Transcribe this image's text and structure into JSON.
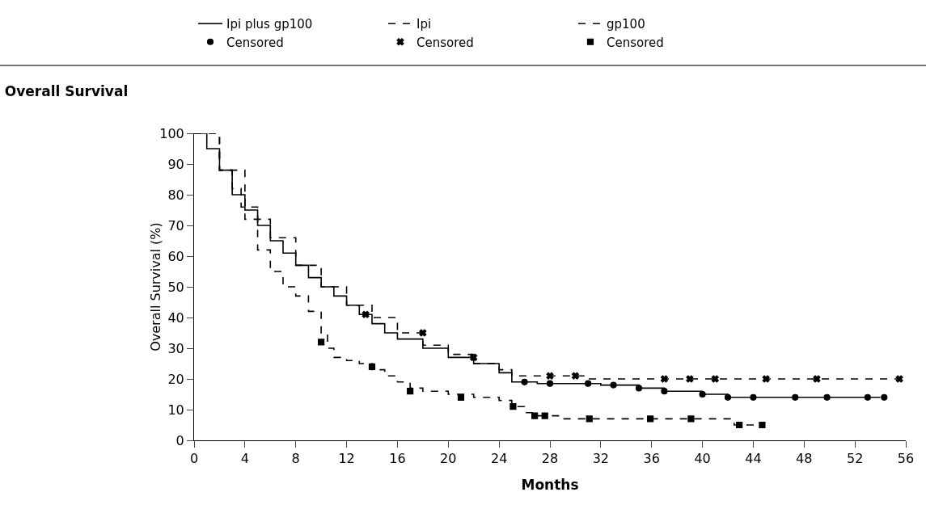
{
  "chart_data": {
    "type": "step",
    "title": "Overall Survival",
    "xlabel": "Months",
    "ylabel": "Overall Survival (%)",
    "xlim": [
      0,
      56
    ],
    "xticks": [
      0,
      4,
      8,
      12,
      16,
      20,
      24,
      28,
      32,
      36,
      40,
      44,
      48,
      52,
      56
    ],
    "ylim": [
      0,
      100
    ],
    "yticks": [
      0,
      10,
      20,
      30,
      40,
      50,
      60,
      70,
      80,
      90,
      100
    ],
    "grid": false,
    "legend": "top",
    "marker": "none",
    "series": [
      {
        "name": "Ipi plus gp100",
        "color": "#000000",
        "line_style": "solid",
        "x": [
          0,
          1,
          2,
          3,
          4,
          5,
          6,
          7,
          8,
          9,
          10,
          11,
          12,
          13,
          14,
          15,
          16,
          18,
          20,
          22,
          24,
          25,
          27,
          30,
          32,
          35,
          37,
          40,
          42,
          54
        ],
        "values": [
          100,
          95,
          88,
          80,
          75,
          70,
          65,
          61,
          57,
          53,
          50,
          47,
          44,
          41,
          38,
          35,
          33,
          30,
          27,
          25,
          22,
          19,
          18.5,
          18.5,
          18,
          17,
          16,
          15,
          14,
          14
        ]
      },
      {
        "name": "Ipi",
        "color": "#000000",
        "line_style": "dashed",
        "x": [
          0,
          2,
          4,
          5,
          6,
          8,
          10,
          12,
          14,
          16,
          18,
          20,
          22,
          24,
          25,
          30,
          31,
          55.5
        ],
        "values": [
          100,
          88,
          76,
          72,
          66,
          57,
          50,
          44,
          40,
          35,
          31,
          28,
          25,
          23,
          21,
          21,
          20,
          20
        ]
      },
      {
        "name": "gp100",
        "color": "#000000",
        "line_style": "dashed",
        "x": [
          0,
          2,
          3,
          3.7,
          4,
          5,
          6,
          7,
          8,
          9,
          10,
          10.5,
          11,
          12,
          13,
          14,
          15,
          16,
          17,
          18,
          20,
          22,
          24,
          25,
          26,
          27,
          28,
          29,
          42.5,
          44.7
        ],
        "values": [
          100,
          88,
          82,
          76,
          72,
          62,
          55,
          50,
          47,
          42,
          35,
          30,
          27,
          26,
          25,
          23,
          21,
          19,
          17,
          16,
          15,
          14,
          13,
          11,
          9,
          8,
          8,
          7,
          5,
          5
        ]
      },
      {
        "name": "Censored",
        "type": "scatter",
        "marker": "circle",
        "color": "#000000",
        "x": [
          26,
          28,
          31,
          33,
          35,
          37,
          40,
          42,
          44,
          47.3,
          49.8,
          53,
          54.3
        ],
        "values": [
          19,
          18.5,
          18.5,
          18,
          17,
          16,
          15,
          14,
          14,
          14,
          14,
          14,
          14
        ]
      },
      {
        "name": "Censored",
        "type": "scatter",
        "marker": "cross",
        "color": "#000000",
        "x": [
          13.5,
          18,
          22,
          28,
          30,
          37,
          39,
          41,
          45,
          49,
          55.5
        ],
        "values": [
          41,
          35,
          27,
          21,
          21,
          20,
          20,
          20,
          20,
          20,
          20
        ]
      },
      {
        "name": "Censored",
        "type": "scatter",
        "marker": "square",
        "color": "#000000",
        "x": [
          10,
          14,
          17,
          21,
          25.1,
          26.8,
          27.6,
          31.1,
          35.9,
          39.1,
          42.9,
          44.7
        ],
        "values": [
          32,
          24,
          16,
          14,
          11,
          8,
          8,
          7,
          7,
          7,
          5,
          5
        ]
      }
    ]
  }
}
